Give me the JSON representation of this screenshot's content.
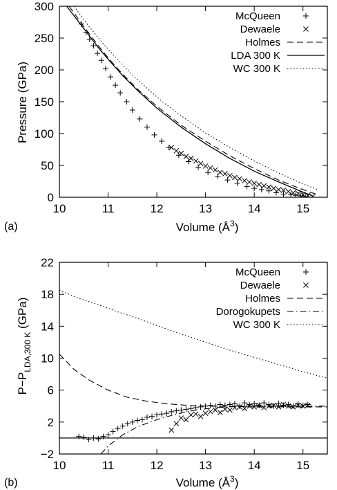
{
  "chart_data": [
    {
      "panel_label": "(a)",
      "type": "line",
      "xlabel": "Volume (Å",
      "xlabel_sup": "3",
      "xlabel_close": ")",
      "ylabel": "Pressure (GPa)",
      "xlim": [
        10,
        15.5
      ],
      "ylim": [
        0,
        300
      ],
      "xticks": [
        10,
        11,
        12,
        13,
        14,
        15
      ],
      "yticks": [
        0,
        50,
        100,
        150,
        200,
        250,
        300
      ],
      "grid": false,
      "legend_position": "top-right",
      "series": [
        {
          "name": "McQueen",
          "style": "plus",
          "x": [
            10.45,
            10.55,
            10.62,
            10.7,
            10.78,
            10.86,
            10.95,
            11.05,
            11.15,
            11.25,
            11.38,
            11.5,
            11.65,
            11.8,
            11.95,
            12.1,
            12.25,
            12.45,
            12.65,
            12.85,
            13.05,
            13.25,
            13.45,
            13.65,
            13.85,
            14.0,
            14.15,
            14.3,
            14.45,
            14.6,
            14.75,
            14.85,
            14.95,
            15.05
          ],
          "y": [
            272,
            259,
            248,
            238,
            226,
            215,
            202,
            189,
            176,
            164,
            150,
            137,
            123,
            110,
            98,
            88,
            78,
            66,
            56,
            47,
            39,
            33,
            27,
            22,
            17,
            14,
            12,
            10,
            7,
            5,
            4,
            3,
            2,
            1
          ]
        },
        {
          "name": "Dewaele",
          "style": "cross",
          "x": [
            12.3,
            12.4,
            12.5,
            12.6,
            12.7,
            12.8,
            12.9,
            13.0,
            13.1,
            13.2,
            13.3,
            13.4,
            13.5,
            13.6,
            13.7,
            13.8,
            13.9,
            14.0,
            14.1,
            14.2,
            14.3,
            14.4,
            14.5,
            14.6,
            14.7,
            14.8,
            14.9,
            15.0,
            15.1,
            15.2
          ],
          "y": [
            78,
            73,
            69,
            64,
            61,
            57,
            53,
            49,
            46,
            43,
            39,
            37,
            34,
            31,
            29,
            26,
            24,
            22,
            20,
            18,
            16,
            14,
            12,
            11,
            9,
            7,
            6,
            4,
            3,
            1
          ]
        },
        {
          "name": "Holmes",
          "style": "dashed",
          "x": [
            10.2,
            10.5,
            10.8,
            11.0,
            11.3,
            11.6,
            12.0,
            12.5,
            13.0,
            13.5,
            14.0,
            14.5,
            15.0,
            15.3
          ],
          "y": [
            300,
            268,
            238,
            219,
            193,
            170,
            143,
            113,
            88,
            65,
            45,
            27,
            12,
            4
          ]
        },
        {
          "name": "LDA 300 K",
          "style": "solid",
          "x": [
            10.15,
            10.5,
            10.8,
            11.0,
            11.3,
            11.6,
            12.0,
            12.5,
            13.0,
            13.5,
            14.0,
            14.5,
            15.0,
            15.2
          ],
          "y": [
            300,
            265,
            235,
            217,
            191,
            168,
            140,
            110,
            84,
            61,
            41,
            24,
            8,
            2
          ]
        },
        {
          "name": "WC 300 K",
          "style": "dotted",
          "x": [
            10.3,
            10.6,
            10.9,
            11.2,
            11.5,
            11.8,
            12.1,
            12.5,
            13.0,
            13.5,
            14.0,
            14.5,
            15.0,
            15.3
          ],
          "y": [
            300,
            269,
            241,
            216,
            192,
            171,
            151,
            128,
            101,
            78,
            57,
            38,
            21,
            12
          ]
        }
      ]
    },
    {
      "panel_label": "(b)",
      "type": "line",
      "xlabel": "Volume (Å",
      "xlabel_sup": "3",
      "xlabel_close": ")",
      "ylabel": "P−P",
      "ylabel_sub": "LDA,300 K",
      "ylabel_close": " (GPa)",
      "xlim": [
        10,
        15.5
      ],
      "ylim": [
        -2,
        22
      ],
      "xticks": [
        10,
        11,
        12,
        13,
        14,
        15
      ],
      "yticks": [
        -2,
        2,
        6,
        10,
        14,
        18,
        22
      ],
      "ytick_labels": [
        "−2",
        "2",
        "6",
        "10",
        "14",
        "18",
        "22"
      ],
      "grid": false,
      "legend_position": "top-right",
      "series": [
        {
          "name": "McQueen",
          "style": "plus",
          "x": [
            10.4,
            10.5,
            10.6,
            10.7,
            10.8,
            10.9,
            11.0,
            11.1,
            11.2,
            11.3,
            11.4,
            11.5,
            11.6,
            11.7,
            11.8,
            11.9,
            12.0,
            12.1,
            12.2,
            12.3,
            12.4,
            12.5,
            12.6,
            12.7,
            12.8,
            12.9,
            13.0,
            13.1,
            13.2,
            13.3,
            13.4,
            13.5,
            13.6,
            13.7,
            13.8,
            13.9,
            14.0,
            14.1,
            14.2,
            14.3,
            14.4,
            14.5,
            14.6,
            14.7,
            14.8,
            14.9,
            15.0,
            15.1
          ],
          "y": [
            0.2,
            0.1,
            -0.2,
            0.0,
            -0.1,
            0.2,
            0.4,
            0.8,
            1.2,
            1.5,
            1.8,
            2.0,
            2.2,
            2.3,
            2.6,
            2.7,
            2.9,
            3.0,
            3.1,
            3.3,
            3.4,
            3.5,
            3.6,
            3.7,
            3.8,
            3.9,
            4.0,
            4.1,
            4.0,
            4.2,
            4.1,
            4.2,
            4.3,
            4.0,
            4.4,
            4.2,
            4.3,
            4.1,
            4.4,
            4.2,
            4.0,
            4.3,
            4.1,
            4.2,
            4.0,
            4.3,
            4.1,
            4.2
          ]
        },
        {
          "name": "Dewaele",
          "style": "cross",
          "x": [
            12.3,
            12.4,
            12.5,
            12.6,
            12.7,
            12.8,
            12.9,
            13.0,
            13.1,
            13.2,
            13.3,
            13.4,
            13.5,
            13.6,
            13.7,
            13.8,
            13.9,
            14.0,
            14.1,
            14.2,
            14.3,
            14.4,
            14.5,
            14.6,
            14.7,
            14.8,
            14.9,
            15.0,
            15.1
          ],
          "y": [
            1.0,
            1.8,
            2.5,
            2.3,
            2.9,
            3.0,
            2.7,
            3.1,
            3.3,
            3.5,
            3.2,
            3.6,
            3.5,
            3.8,
            3.9,
            3.7,
            4.0,
            3.9,
            4.1,
            3.8,
            4.0,
            4.1,
            3.9,
            4.2,
            4.0,
            3.9,
            4.1,
            4.0,
            4.1
          ]
        },
        {
          "name": "Holmes",
          "style": "dashed",
          "x": [
            10.0,
            10.3,
            10.6,
            11.0,
            11.4,
            11.8,
            12.2,
            12.6,
            13.0,
            13.5,
            14.0,
            14.5,
            15.0,
            15.5
          ],
          "y": [
            10.5,
            8.6,
            7.3,
            6.0,
            5.1,
            4.6,
            4.3,
            4.1,
            4.0,
            3.95,
            3.9,
            3.9,
            3.9,
            3.9
          ]
        },
        {
          "name": "Dorogokupets",
          "style": "dashdot",
          "x": [
            10.85,
            11.0,
            11.3,
            11.6,
            12.0,
            12.4,
            12.8,
            13.2,
            13.6,
            14.0,
            14.5,
            15.0,
            15.5
          ],
          "y": [
            -2.0,
            -1.0,
            0.4,
            1.4,
            2.3,
            3.0,
            3.5,
            3.8,
            3.95,
            4.0,
            4.0,
            4.0,
            4.0
          ]
        },
        {
          "name": "WC 300 K",
          "style": "dotted",
          "x": [
            10.0,
            10.4,
            10.8,
            11.2,
            11.6,
            12.0,
            12.5,
            13.0,
            13.5,
            14.0,
            14.5,
            15.0,
            15.5
          ],
          "y": [
            18.5,
            17.5,
            16.7,
            15.8,
            15.0,
            14.1,
            13.0,
            12.0,
            11.0,
            10.1,
            9.2,
            8.3,
            7.5
          ]
        },
        {
          "name": "",
          "style": "baseline",
          "x": [
            10.0,
            15.5
          ],
          "y": [
            0,
            0
          ]
        }
      ]
    }
  ]
}
